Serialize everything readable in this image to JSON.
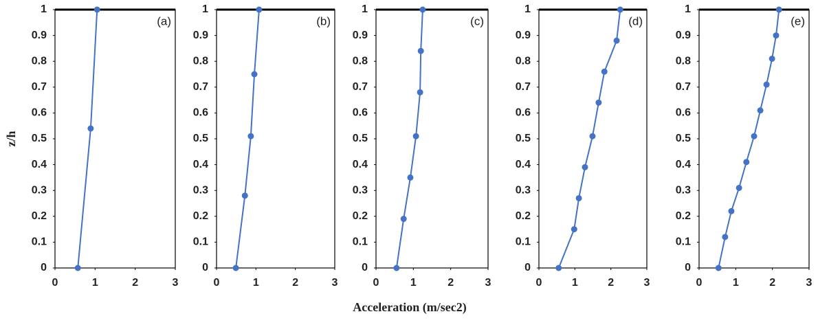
{
  "chart_data": [
    {
      "type": "line",
      "label": "(a)",
      "ylabel": "z/h",
      "color": "#4472c4",
      "x": [
        0.57,
        0.89,
        1.05
      ],
      "values": [
        0,
        0.54,
        1
      ],
      "xlim": [
        0,
        3
      ],
      "xticks": [
        0,
        1,
        2,
        3
      ],
      "ylim": [
        0,
        1
      ],
      "yticks": [
        0,
        0.1,
        0.2,
        0.3,
        0.4,
        0.5,
        0.6,
        0.7,
        0.8,
        0.9,
        1
      ]
    },
    {
      "type": "line",
      "label": "(b)",
      "color": "#4472c4",
      "x": [
        0.49,
        0.72,
        0.87,
        0.96,
        1.08
      ],
      "values": [
        0,
        0.28,
        0.51,
        0.75,
        1
      ],
      "xlim": [
        0,
        3
      ],
      "xticks": [
        0,
        1,
        2,
        3
      ],
      "ylim": [
        0,
        1
      ],
      "yticks": [
        0,
        0.1,
        0.2,
        0.3,
        0.4,
        0.5,
        0.6,
        0.7,
        0.8,
        0.9,
        1
      ]
    },
    {
      "type": "line",
      "label": "(c)",
      "xlabel": "Acceleration (m/sec2)",
      "color": "#4472c4",
      "x": [
        0.55,
        0.74,
        0.92,
        1.07,
        1.18,
        1.2,
        1.25
      ],
      "values": [
        0,
        0.19,
        0.35,
        0.51,
        0.68,
        0.84,
        1
      ],
      "xlim": [
        0,
        3
      ],
      "xticks": [
        0,
        1,
        2,
        3
      ],
      "ylim": [
        0,
        1
      ],
      "yticks": [
        0,
        0.1,
        0.2,
        0.3,
        0.4,
        0.5,
        0.6,
        0.7,
        0.8,
        0.9,
        1
      ]
    },
    {
      "type": "line",
      "label": "(d)",
      "color": "#4472c4",
      "x": [
        0.55,
        0.98,
        1.11,
        1.28,
        1.49,
        1.66,
        1.82,
        2.16,
        2.26
      ],
      "values": [
        0,
        0.15,
        0.27,
        0.39,
        0.51,
        0.64,
        0.76,
        0.88,
        1
      ],
      "xlim": [
        0,
        3
      ],
      "xticks": [
        0,
        1,
        2,
        3
      ],
      "ylim": [
        0,
        1
      ],
      "yticks": [
        0,
        0.1,
        0.2,
        0.3,
        0.4,
        0.5,
        0.6,
        0.7,
        0.8,
        0.9,
        1
      ]
    },
    {
      "type": "line",
      "label": "(e)",
      "color": "#4472c4",
      "x": [
        0.53,
        0.71,
        0.88,
        1.09,
        1.29,
        1.5,
        1.67,
        1.84,
        1.99,
        2.1,
        2.18
      ],
      "values": [
        0,
        0.12,
        0.22,
        0.31,
        0.41,
        0.51,
        0.61,
        0.71,
        0.81,
        0.9,
        1
      ],
      "xlim": [
        0,
        3
      ],
      "xticks": [
        0,
        1,
        2,
        3
      ],
      "ylim": [
        0,
        1
      ],
      "yticks": [
        0,
        0.1,
        0.2,
        0.3,
        0.4,
        0.5,
        0.6,
        0.7,
        0.8,
        0.9,
        1
      ]
    }
  ]
}
